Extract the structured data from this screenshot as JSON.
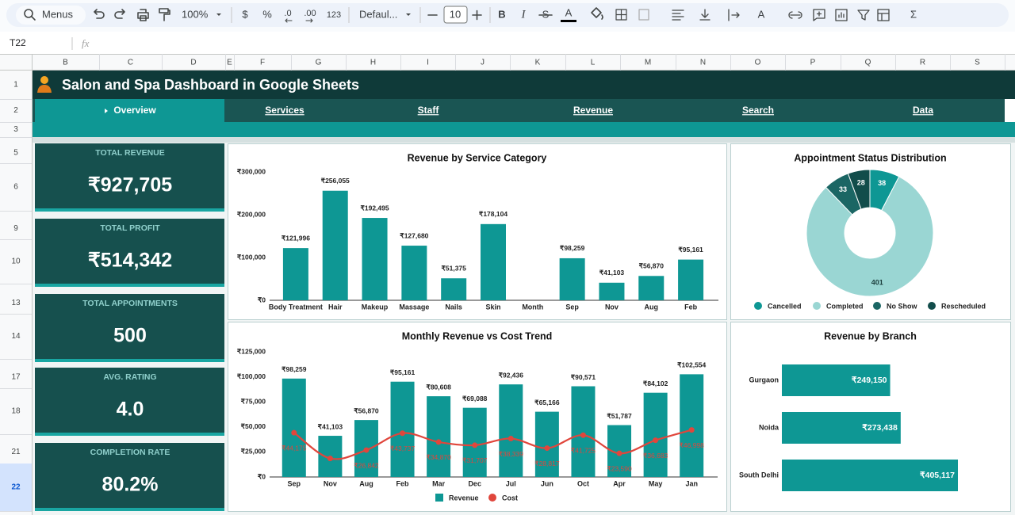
{
  "toolbar": {
    "search": "Menus",
    "zoom": "100%",
    "currency": "$",
    "percent": "%",
    "decrease_decimals": ".0",
    "increase_decimals": ".00",
    "number_format": "123",
    "font": "Defaul...",
    "font_size": "10",
    "bold": "B",
    "italic": "I",
    "strikethrough": "S",
    "text_color": "A",
    "rotate": "A",
    "sum": "Σ"
  },
  "formula_bar": {
    "cell": "T22",
    "fx": "fx"
  },
  "sheet": {
    "columns": [
      "B",
      "C",
      "D",
      "E",
      "F",
      "G",
      "H",
      "I",
      "J",
      "K",
      "L",
      "M",
      "N",
      "O",
      "P",
      "Q",
      "R",
      "S"
    ],
    "rows": [
      "1",
      "2",
      "3",
      "5",
      "6",
      "9",
      "10",
      "13",
      "14",
      "17",
      "18",
      "21",
      "22"
    ]
  },
  "dashboard": {
    "title": "Salon and Spa Dashboard in Google Sheets",
    "nav": [
      "Overview",
      "Services",
      "Staff",
      "Revenue",
      "Search",
      "Data"
    ],
    "kpis": [
      {
        "label": "TOTAL REVENUE",
        "value": "₹927,705"
      },
      {
        "label": "TOTAL PROFIT",
        "value": "₹514,342"
      },
      {
        "label": "TOTAL APPOINTMENTS",
        "value": "500"
      },
      {
        "label": "AVG. RATING",
        "value": "4.0"
      },
      {
        "label": "COMPLETION RATE",
        "value": "80.2%"
      }
    ]
  },
  "chart_data": [
    {
      "type": "bar",
      "title": "Revenue by Service Category",
      "categories": [
        "Body Treatment",
        "Hair",
        "Makeup",
        "Massage",
        "Nails",
        "Skin",
        "Month",
        "Sep",
        "Nov",
        "Aug",
        "Feb"
      ],
      "values": [
        121996,
        256055,
        192495,
        127680,
        51375,
        178104,
        null,
        98259,
        41103,
        56870,
        95161
      ],
      "value_labels": [
        "₹121,996",
        "₹256,055",
        "₹192,495",
        "₹127,680",
        "₹51,375",
        "₹178,104",
        null,
        "₹98,259",
        "₹41,103",
        "₹56,870",
        "₹95,161"
      ],
      "color": "#0e9794",
      "grid": false,
      "ylim": [
        0,
        300000
      ],
      "yticks": [
        {
          "value": 0,
          "label": "₹0"
        },
        {
          "value": 100000,
          "label": "₹100,000"
        },
        {
          "value": 200000,
          "label": "₹200,000"
        },
        {
          "value": 300000,
          "label": "₹300,000"
        }
      ]
    },
    {
      "type": "donut",
      "title": "Appointment Status Distribution",
      "categories": [
        "Cancelled",
        "Completed",
        "No Show",
        "Rescheduled"
      ],
      "values": [
        38,
        401,
        33,
        28
      ],
      "colors": [
        "#0e9794",
        "#9ad6d3",
        "#1b6664",
        "#124d4b"
      ],
      "legend": "bottom"
    },
    {
      "type": "combo",
      "title": "Monthly Revenue vs Cost Trend",
      "categories": [
        "Sep",
        "Nov",
        "Aug",
        "Feb",
        "Mar",
        "Dec",
        "Jul",
        "Jun",
        "Oct",
        "Apr",
        "May",
        "Jan"
      ],
      "series": [
        {
          "name": "Revenue",
          "type": "bar",
          "color": "#0e9794",
          "values": [
            98259,
            41103,
            56870,
            95161,
            80608,
            69088,
            92436,
            65166,
            90571,
            51787,
            84102,
            102554
          ],
          "value_labels": [
            "₹98,259",
            "₹41,103",
            "₹56,870",
            "₹95,161",
            "₹80,608",
            "₹69,088",
            "₹92,436",
            "₹65,166",
            "₹90,571",
            "₹51,787",
            "₹84,102",
            "₹102,554"
          ]
        },
        {
          "name": "Cost",
          "type": "line",
          "color": "#e0463c",
          "values": [
            44175,
            18500,
            26842,
            43737,
            34870,
            31707,
            38339,
            28817,
            41725,
            23590,
            36683,
            46998
          ],
          "value_labels": [
            "₹44,175",
            null,
            "₹26,842",
            "₹43,737",
            "₹34,870",
            "₹31,707",
            "₹38,339",
            "₹28,817",
            "₹41,725",
            "₹23,590",
            "₹36,683",
            "₹46,998"
          ]
        }
      ],
      "grid": false,
      "legend": "bottom",
      "ylim": [
        0,
        125000
      ],
      "yticks": [
        {
          "value": 0,
          "label": "₹0"
        },
        {
          "value": 25000,
          "label": "₹25,000"
        },
        {
          "value": 50000,
          "label": "₹50,000"
        },
        {
          "value": 75000,
          "label": "₹75,000"
        },
        {
          "value": 100000,
          "label": "₹100,000"
        },
        {
          "value": 125000,
          "label": "₹125,000"
        }
      ]
    },
    {
      "type": "hbar",
      "title": "Revenue by Branch",
      "categories": [
        "Gurgaon",
        "Noida",
        "South Delhi"
      ],
      "values": [
        249150,
        273438,
        405117
      ],
      "value_labels": [
        "₹249,150",
        "₹273,438",
        "₹405,117"
      ],
      "color": "#0e9794"
    }
  ]
}
